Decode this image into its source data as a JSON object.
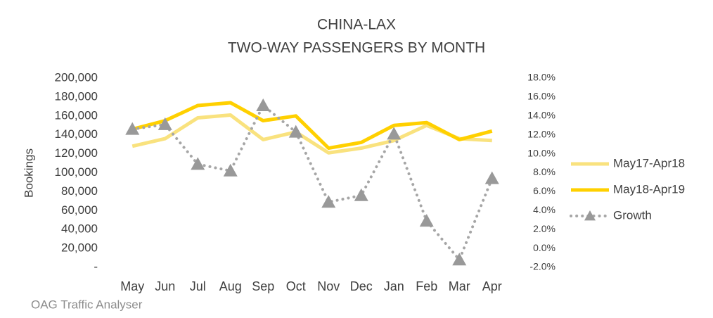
{
  "chart_data": {
    "type": "line",
    "title": "CHINA-LAX",
    "subtitle": "TWO-WAY PASSENGERS BY MONTH",
    "ylabel": "Bookings",
    "source": "OAG Traffic Analyser",
    "categories": [
      "May",
      "Jun",
      "Jul",
      "Aug",
      "Sep",
      "Oct",
      "Nov",
      "Dec",
      "Jan",
      "Feb",
      "Mar",
      "Apr"
    ],
    "series": [
      {
        "name": "May17-Apr18",
        "color": "#f9e27e",
        "values": [
          128000,
          136000,
          158000,
          161000,
          135000,
          143000,
          121000,
          126000,
          134000,
          150000,
          136000,
          134000
        ]
      },
      {
        "name": "May18-Apr19",
        "color": "#ffd000",
        "values": [
          146000,
          155000,
          171000,
          174000,
          155000,
          160000,
          126000,
          132000,
          150000,
          153000,
          135000,
          144000
        ]
      },
      {
        "name": "Growth",
        "color": "#a6a6a6",
        "axis": "y2",
        "dash": "dotted",
        "marker": "triangle",
        "values": [
          12.6,
          13.1,
          8.9,
          8.2,
          15.1,
          12.3,
          4.9,
          5.6,
          12.1,
          2.9,
          -1.2,
          7.4
        ]
      }
    ],
    "ylim": [
      0,
      200000
    ],
    "yticks": [
      {
        "value": 0,
        "label": "-"
      },
      {
        "value": 20000,
        "label": "20,000"
      },
      {
        "value": 40000,
        "label": "40,000"
      },
      {
        "value": 60000,
        "label": "60,000"
      },
      {
        "value": 80000,
        "label": "80,000"
      },
      {
        "value": 100000,
        "label": "100,000"
      },
      {
        "value": 120000,
        "label": "120,000"
      },
      {
        "value": 140000,
        "label": "140,000"
      },
      {
        "value": 160000,
        "label": "160,000"
      },
      {
        "value": 180000,
        "label": "180,000"
      },
      {
        "value": 200000,
        "label": "200,000"
      }
    ],
    "y2lim": [
      -2,
      18
    ],
    "y2ticks": [
      {
        "value": -2,
        "label": "-2.0%"
      },
      {
        "value": 0,
        "label": "0.0%"
      },
      {
        "value": 2,
        "label": "2.0%"
      },
      {
        "value": 4,
        "label": "4.0%"
      },
      {
        "value": 6,
        "label": "6.0%"
      },
      {
        "value": 8,
        "label": "8.0%"
      },
      {
        "value": 10,
        "label": "10.0%"
      },
      {
        "value": 12,
        "label": "12.0%"
      },
      {
        "value": 14,
        "label": "14.0%"
      },
      {
        "value": 16,
        "label": "16.0%"
      },
      {
        "value": 18,
        "label": "18.0%"
      }
    ],
    "grid": false,
    "legend": "right"
  }
}
